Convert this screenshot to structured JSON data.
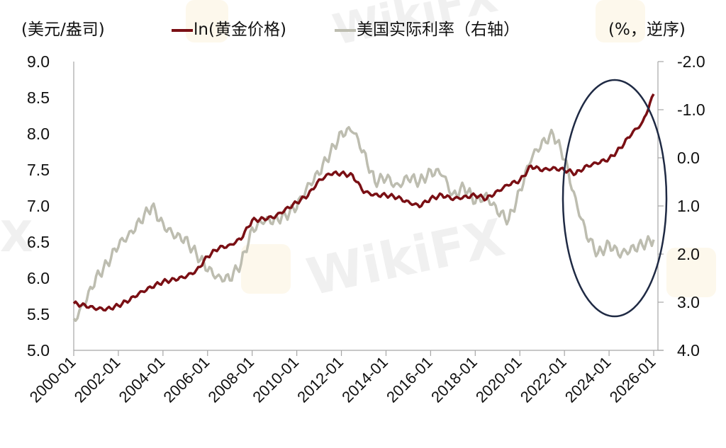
{
  "header": {
    "left_unit": "(美元/盎司)",
    "right_unit": "(%，逆序)",
    "legend": [
      {
        "label": "ln(黄金价格)",
        "color": "#7a0f14"
      },
      {
        "label": "美国实际利率（右轴）",
        "color": "#bdbdb0"
      }
    ]
  },
  "watermark": {
    "text": "WikiFX"
  },
  "chart_data": {
    "type": "line",
    "title": "",
    "xlabel": "",
    "ylabel_left": "(美元/盎司)",
    "ylabel_right": "(%，逆序)",
    "x_ticks": [
      "2000-01",
      "2002-01",
      "2004-01",
      "2006-01",
      "2008-01",
      "2010-01",
      "2012-01",
      "2014-01",
      "2016-01",
      "2018-01",
      "2020-01",
      "2022-01",
      "2024-01",
      "2026-01"
    ],
    "y_left_ticks": [
      "9.0",
      "8.5",
      "8.0",
      "7.5",
      "7.0",
      "6.5",
      "6.0",
      "5.5",
      "5.0"
    ],
    "y_left_range": [
      5.0,
      9.0
    ],
    "y_right_ticks": [
      "-2.0",
      "-1.0",
      "0.0",
      "1.0",
      "2.0",
      "3.0",
      "4.0"
    ],
    "y_right_range": [
      -2.0,
      4.0
    ],
    "y_right_inverted": true,
    "grid": false,
    "legend_position": "top",
    "x": [
      2000,
      2000.5,
      2001,
      2001.5,
      2002,
      2002.5,
      2003,
      2003.5,
      2004,
      2004.5,
      2005,
      2005.5,
      2006,
      2006.5,
      2007,
      2007.5,
      2008,
      2008.5,
      2009,
      2009.5,
      2010,
      2010.5,
      2011,
      2011.5,
      2012,
      2012.5,
      2013,
      2013.5,
      2014,
      2014.5,
      2015,
      2015.5,
      2016,
      2016.5,
      2017,
      2017.5,
      2018,
      2018.5,
      2019,
      2019.5,
      2020,
      2020.5,
      2021,
      2021.5,
      2022,
      2022.5,
      2023,
      2023.5,
      2024,
      2024.5,
      2025,
      2025.5,
      2026
    ],
    "series": [
      {
        "name": "ln(黄金价格)",
        "axis": "left",
        "color": "#7a0f14",
        "values": [
          5.65,
          5.62,
          5.58,
          5.57,
          5.62,
          5.7,
          5.8,
          5.88,
          5.95,
          5.98,
          6.02,
          6.1,
          6.3,
          6.42,
          6.45,
          6.55,
          6.8,
          6.82,
          6.85,
          6.95,
          7.05,
          7.15,
          7.35,
          7.45,
          7.45,
          7.42,
          7.2,
          7.15,
          7.15,
          7.12,
          7.05,
          7.0,
          7.1,
          7.15,
          7.1,
          7.12,
          7.15,
          7.1,
          7.2,
          7.3,
          7.35,
          7.55,
          7.5,
          7.52,
          7.5,
          7.45,
          7.55,
          7.6,
          7.65,
          7.8,
          8.0,
          8.15,
          8.55
        ]
      },
      {
        "name": "美国实际利率（右轴）",
        "axis": "right",
        "color": "#bdbdb0",
        "values": [
          3.4,
          3.0,
          2.5,
          2.2,
          1.8,
          1.6,
          1.3,
          1.0,
          1.4,
          1.6,
          1.7,
          2.0,
          2.3,
          2.5,
          2.5,
          2.2,
          1.5,
          1.3,
          1.3,
          1.2,
          1.0,
          0.6,
          0.3,
          -0.1,
          -0.5,
          -0.6,
          -0.1,
          0.5,
          0.4,
          0.6,
          0.4,
          0.5,
          0.3,
          0.3,
          0.8,
          0.6,
          0.9,
          0.8,
          1.1,
          1.3,
          0.7,
          0.0,
          -0.3,
          -0.5,
          0.0,
          0.9,
          1.6,
          2.0,
          1.8,
          2.0,
          1.9,
          1.8,
          1.7
        ]
      }
    ],
    "annotations": [
      {
        "type": "ellipse",
        "around": "2022-2026",
        "color": "#1f2a44"
      }
    ]
  }
}
